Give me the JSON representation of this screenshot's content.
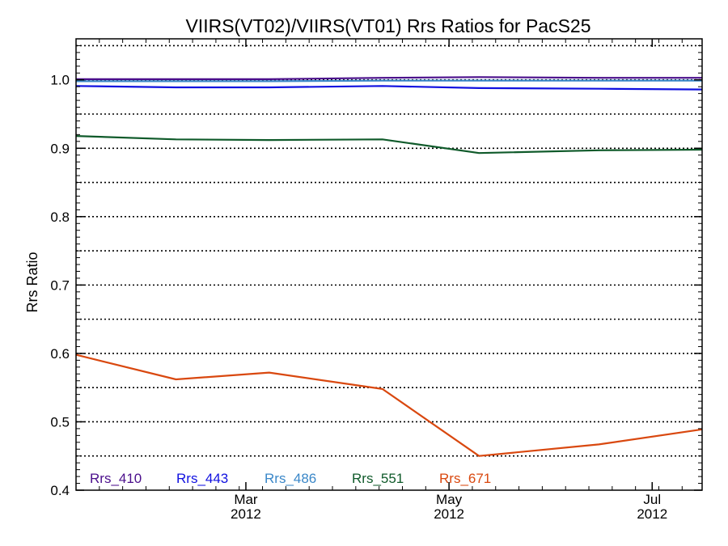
{
  "chart_data": {
    "type": "line",
    "title": "VIIRS(VT02)/VIIRS(VT01)  Rrs Ratios for PacS25",
    "xlabel": "",
    "ylabel": "Rrs Ratio",
    "ylim": [
      0.4,
      1.06
    ],
    "xlim": [
      "2012-01-10",
      "2012-07-16"
    ],
    "yticks": [
      {
        "value": 0.4,
        "label": "0.4"
      },
      {
        "value": 0.5,
        "label": "0.5"
      },
      {
        "value": 0.6,
        "label": "0.6"
      },
      {
        "value": 0.7,
        "label": "0.7"
      },
      {
        "value": 0.8,
        "label": "0.8"
      },
      {
        "value": 0.9,
        "label": "0.9"
      },
      {
        "value": 1.0,
        "label": "1.0"
      }
    ],
    "ygrid": [
      0.45,
      0.5,
      0.55,
      0.6,
      0.65,
      0.7,
      0.75,
      0.8,
      0.85,
      0.9,
      0.95,
      1.0,
      1.05
    ],
    "xticks": [
      {
        "date": "2012-03-01",
        "month": "Mar",
        "year": "2012"
      },
      {
        "date": "2012-05-01",
        "month": "May",
        "year": "2012"
      },
      {
        "date": "2012-07-01",
        "month": "Jul",
        "year": "2012"
      }
    ],
    "grid": "horizontal dotted",
    "legend_position": "bottom-left",
    "series": [
      {
        "name": "Rrs_410",
        "color": "#4b0f8c",
        "x": [
          "2012-01-10",
          "2012-02-09",
          "2012-03-08",
          "2012-04-11",
          "2012-05-10",
          "2012-06-15",
          "2012-07-16"
        ],
        "y": [
          1.001,
          1.001,
          1.001,
          1.003,
          1.004,
          1.003,
          1.003
        ]
      },
      {
        "name": "Rrs_443",
        "color": "#1010e0",
        "x": [
          "2012-01-10",
          "2012-02-09",
          "2012-03-08",
          "2012-04-11",
          "2012-05-10",
          "2012-06-15",
          "2012-07-16"
        ],
        "y": [
          0.991,
          0.989,
          0.989,
          0.991,
          0.988,
          0.987,
          0.986
        ]
      },
      {
        "name": "Rrs_486",
        "color": "#3a87c8",
        "x": [
          "2012-01-10",
          "2012-02-09",
          "2012-03-08",
          "2012-04-11",
          "2012-05-10",
          "2012-06-15",
          "2012-07-16"
        ],
        "y": [
          0.998,
          0.998,
          0.998,
          0.999,
          0.999,
          0.999,
          0.999
        ]
      },
      {
        "name": "Rrs_551",
        "color": "#0f5a2a",
        "x": [
          "2012-01-10",
          "2012-02-09",
          "2012-03-08",
          "2012-04-11",
          "2012-05-10",
          "2012-06-15",
          "2012-07-16"
        ],
        "y": [
          0.918,
          0.913,
          0.912,
          0.913,
          0.893,
          0.897,
          0.898
        ]
      },
      {
        "name": "Rrs_671",
        "color": "#d9480f",
        "x": [
          "2012-01-10",
          "2012-02-09",
          "2012-03-08",
          "2012-04-11",
          "2012-05-10",
          "2012-06-15",
          "2012-07-16"
        ],
        "y": [
          0.598,
          0.562,
          0.572,
          0.548,
          0.45,
          0.467,
          0.489
        ]
      }
    ]
  }
}
